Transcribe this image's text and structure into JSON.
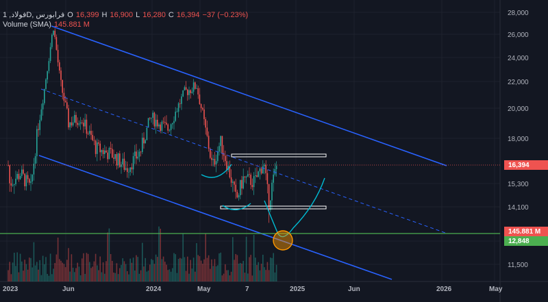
{
  "legend": {
    "symbol": "1 ,فولادD, فرابورس",
    "open_label": "O",
    "open": "16,399",
    "high_label": "H",
    "high": "16,900",
    "low_label": "L",
    "low": "16,280",
    "close_label": "C",
    "close": "16,394",
    "change": "−37 (−0.23%)",
    "volume_label": "Volume (SMA)",
    "volume_value": "145.881 M"
  },
  "badges": {
    "price": "16,394",
    "volume": "145.881 M",
    "level": "12,848",
    "price_color": "#ef5350",
    "volume_color": "#ef5350",
    "level_color": "#4caf50"
  },
  "colors": {
    "up": "#26a69a",
    "down": "#ef5350",
    "channel": "#2962ff",
    "horizontal": "#4caf50",
    "curve": "#00bcd4",
    "circle": "#ff9800"
  },
  "chart_data": {
    "type": "candlestick",
    "y_ticks": [
      "28,000",
      "26,000",
      "24,000",
      "22,000",
      "20,000",
      "18,000",
      "15,300",
      "14,100",
      "12,848",
      "11,500"
    ],
    "x_ticks": [
      "2023",
      "Jun",
      "2024",
      "May",
      "7",
      "2025",
      "Jun",
      "2026",
      "May"
    ],
    "price_range": [
      10800,
      28500
    ],
    "last_close": 16394,
    "support_level": 12848
  }
}
